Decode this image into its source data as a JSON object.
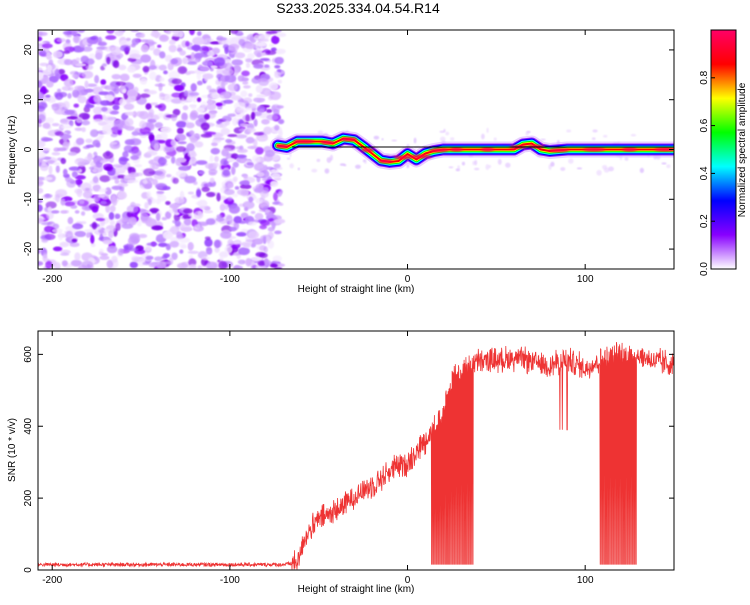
{
  "title": "S233.2025.334.04.54.R14",
  "chart_data": [
    {
      "type": "heatmap",
      "name": "spectrogram",
      "xlabel": "Height of straight line (km)",
      "ylabel": "Frequency (Hz)",
      "xlim": [
        -208,
        150
      ],
      "ylim": [
        -24,
        24
      ],
      "x_ticks": [
        {
          "value": -200,
          "label": "-200"
        },
        {
          "value": -100,
          "label": "-100"
        },
        {
          "value": 0,
          "label": "0"
        },
        {
          "value": 100,
          "label": "100"
        }
      ],
      "y_ticks": [
        {
          "value": -20,
          "label": "-20"
        },
        {
          "value": -10,
          "label": "-10"
        },
        {
          "value": 0,
          "label": "0"
        },
        {
          "value": 10,
          "label": "10"
        },
        {
          "value": 20,
          "label": "20"
        }
      ],
      "noise_region_x": [
        -208,
        -73
      ],
      "signal_track": {
        "x": [
          -73,
          -68,
          -62,
          -55,
          -48,
          -42,
          -36,
          -30,
          -25,
          -20,
          -15,
          -10,
          -5,
          0,
          5,
          10,
          15,
          20,
          25,
          30,
          40,
          50,
          60,
          65,
          70,
          75,
          80,
          90,
          100,
          110,
          120,
          130,
          140,
          150
        ],
        "y": [
          0.8,
          0.5,
          1.6,
          1.6,
          1.6,
          1.2,
          2.2,
          1.9,
          0.6,
          -0.8,
          -2.2,
          -2.5,
          -2.3,
          -0.9,
          -2.0,
          -0.8,
          -0.3,
          0.0,
          0.0,
          0.0,
          0.0,
          0.0,
          0.0,
          1.0,
          1.2,
          0.0,
          -0.3,
          0.0,
          0.0,
          0.0,
          0.0,
          0.0,
          0.0,
          0.0
        ]
      },
      "reference_line_y": 0.5,
      "colorbar": {
        "label": "Normalized spectral amplitude",
        "range": [
          0,
          1
        ],
        "ticks": [
          {
            "value": 0.0,
            "label": "0.0"
          },
          {
            "value": 0.2,
            "label": "0.2"
          },
          {
            "value": 0.4,
            "label": "0.4"
          },
          {
            "value": 0.6,
            "label": "0.6"
          },
          {
            "value": 0.8,
            "label": "0.8"
          }
        ],
        "colormap": [
          "#ffffff",
          "#8800ff",
          "#0000ff",
          "#00ffff",
          "#00ff00",
          "#ffff00",
          "#ff0000",
          "#ff0066"
        ]
      }
    },
    {
      "type": "line",
      "name": "snr",
      "xlabel": "Height of straight line (km)",
      "ylabel": "SNR (10 * v/v)",
      "xlim": [
        -208,
        150
      ],
      "ylim": [
        0,
        665
      ],
      "color": "#ee3333",
      "x_ticks": [
        {
          "value": -200,
          "label": "-200"
        },
        {
          "value": -100,
          "label": "-100"
        },
        {
          "value": 0,
          "label": "0"
        },
        {
          "value": 100,
          "label": "100"
        }
      ],
      "y_ticks": [
        {
          "value": 0,
          "label": "0"
        },
        {
          "value": 200,
          "label": "200"
        },
        {
          "value": 400,
          "label": "400"
        },
        {
          "value": 600,
          "label": "600"
        }
      ],
      "trend": {
        "x": [
          -208,
          -70,
          -62,
          -58,
          -50,
          -40,
          -30,
          -20,
          -10,
          0,
          10,
          20,
          25,
          30,
          40,
          50,
          60,
          70,
          80,
          90,
          100,
          110,
          120,
          130,
          140,
          150
        ],
        "y": [
          15,
          15,
          20,
          90,
          140,
          165,
          205,
          235,
          275,
          300,
          360,
          440,
          540,
          560,
          580,
          585,
          590,
          580,
          570,
          585,
          560,
          590,
          600,
          595,
          580,
          570
        ]
      },
      "noise_amplitude": 30,
      "dropout_ranges": [
        [
          13,
          37
        ],
        [
          108,
          129
        ]
      ],
      "dropout_floor": 15
    }
  ]
}
